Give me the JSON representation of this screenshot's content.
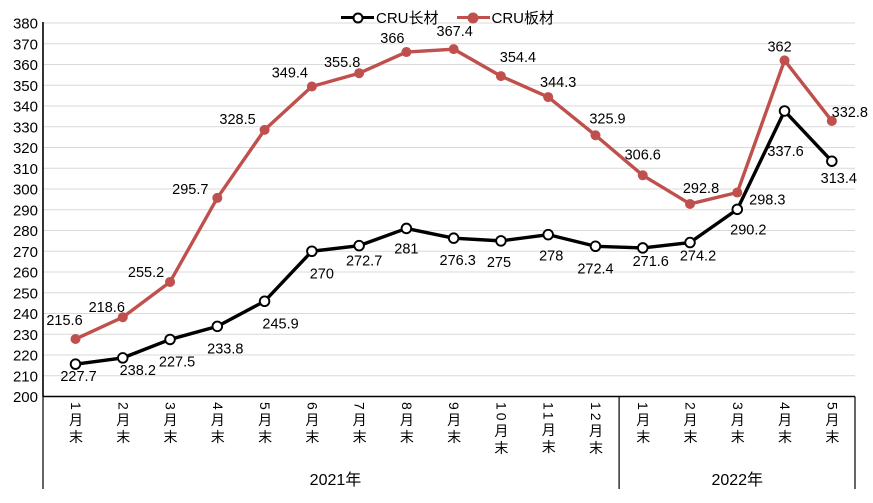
{
  "legend": {
    "items": [
      {
        "label": "CRU长材",
        "color": "#000000",
        "marker": "open-circle"
      },
      {
        "label": "CRU板材",
        "color": "#C0504D",
        "marker": "filled-circle"
      }
    ]
  },
  "y_axis": {
    "min": 200,
    "max": 380,
    "step": 10,
    "ticks": [
      380,
      370,
      360,
      350,
      340,
      330,
      320,
      310,
      300,
      290,
      280,
      270,
      260,
      250,
      240,
      230,
      220,
      210,
      200
    ]
  },
  "x_axis": {
    "categories": [
      "1月末",
      "2月末",
      "3月末",
      "4月末",
      "5月末",
      "6月末",
      "7月末",
      "8月末",
      "9月末",
      "10月末",
      "11月末",
      "12月末",
      "1月末",
      "2月末",
      "3月末",
      "4月末",
      "5月末"
    ],
    "year_groups": [
      {
        "label": "2021年",
        "count": 12
      },
      {
        "label": "2022年",
        "count": 5
      }
    ]
  },
  "colors": {
    "grid": "#D9D9D9",
    "axis": "#000000",
    "label_text": "#000000"
  },
  "chart_data": {
    "type": "line",
    "categories": [
      "1月末",
      "2月末",
      "3月末",
      "4月末",
      "5月末",
      "6月末",
      "7月末",
      "8月末",
      "9月末",
      "10月末",
      "11月末",
      "12月末",
      "1月末",
      "2月末",
      "3月末",
      "4月末",
      "5月末"
    ],
    "ylim": [
      200,
      380
    ],
    "grid": true,
    "legend_position": "top",
    "series": [
      {
        "name": "CRU长材",
        "color": "#000000",
        "marker": "open-circle",
        "values": [
          215.6,
          218.6,
          227.5,
          233.8,
          245.9,
          270,
          272.7,
          281,
          276.3,
          275,
          278,
          272.4,
          271.6,
          274.2,
          290.2,
          337.6,
          313.4
        ],
        "label_offsets": [
          [
            -11,
            -44
          ],
          [
            -16,
            -51
          ],
          [
            7,
            22
          ],
          [
            8,
            22
          ],
          [
            16,
            22
          ],
          [
            10,
            22
          ],
          [
            5,
            15
          ],
          [
            0,
            20
          ],
          [
            4,
            22
          ],
          [
            -2,
            21
          ],
          [
            3,
            21
          ],
          [
            0,
            22
          ],
          [
            8,
            13
          ],
          [
            8,
            13
          ],
          [
            11,
            20
          ],
          [
            1,
            40
          ],
          [
            7,
            17
          ]
        ]
      },
      {
        "name": "CRU板材",
        "color": "#C0504D",
        "marker": "filled-circle",
        "values": [
          227.7,
          238.2,
          255.2,
          295.7,
          328.5,
          349.4,
          355.8,
          366,
          367.4,
          354.4,
          344.3,
          325.9,
          306.6,
          292.8,
          298.3,
          362,
          332.8
        ],
        "label_offsets": [
          [
            3,
            37
          ],
          [
            15,
            53
          ],
          [
            -24,
            -10
          ],
          [
            -27,
            -9
          ],
          [
            -27,
            -11
          ],
          [
            -22,
            -14
          ],
          [
            -17,
            -11
          ],
          [
            -14,
            -14
          ],
          [
            1,
            -18
          ],
          [
            17,
            -19
          ],
          [
            10,
            -15
          ],
          [
            12,
            -17
          ],
          [
            0,
            -21
          ],
          [
            11,
            -16
          ],
          [
            30,
            7
          ],
          [
            -5,
            -14
          ],
          [
            18,
            -9
          ]
        ]
      }
    ]
  }
}
